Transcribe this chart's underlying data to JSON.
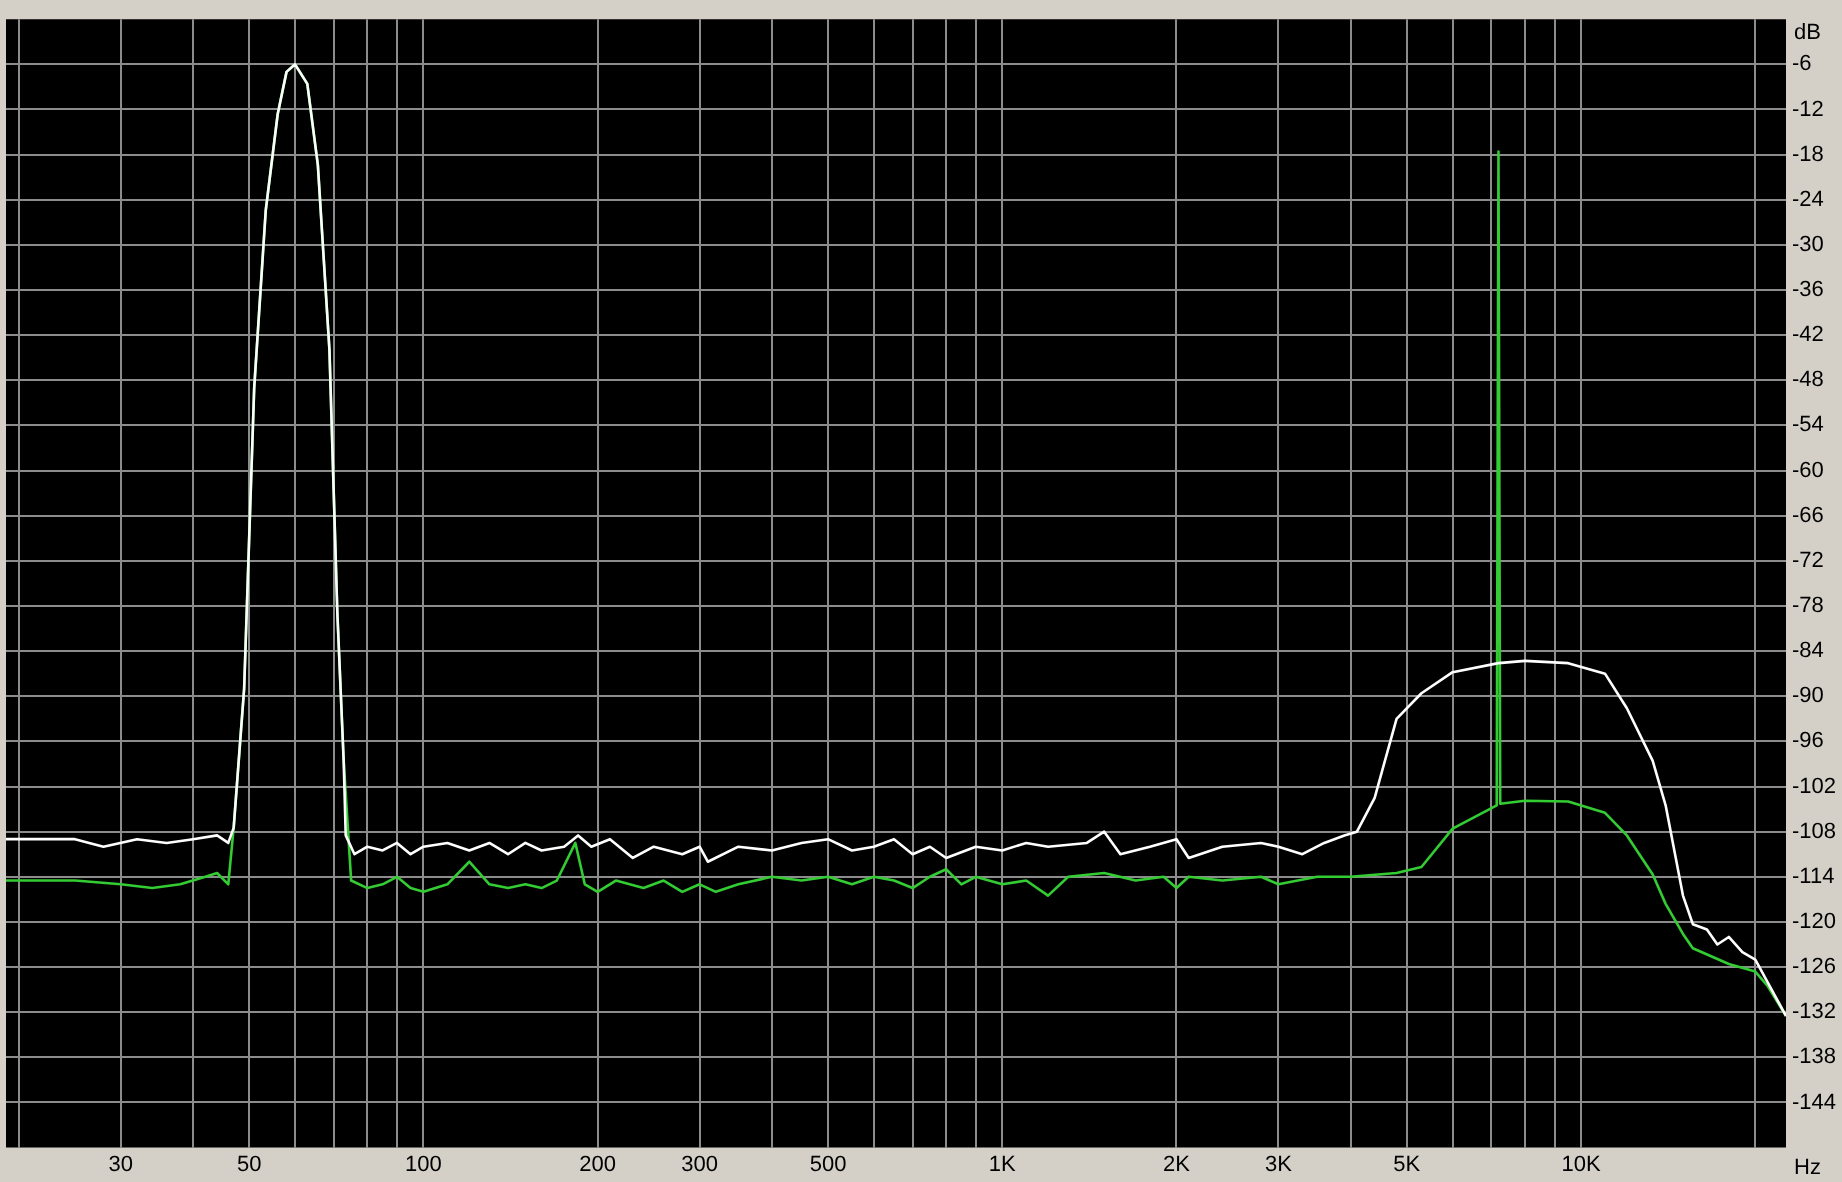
{
  "chart_data": {
    "type": "line",
    "xlabel": "Hz",
    "ylabel": "dB",
    "log": "x",
    "grid": true,
    "legend": false,
    "marker": "none",
    "line_style": "solid",
    "xlim": [
      19,
      22600
    ],
    "ylim": [
      -150,
      0
    ],
    "xticks": [
      {
        "value": 20,
        "label": null
      },
      30,
      {
        "value": 40,
        "label": null
      },
      50,
      {
        "value": 60,
        "label": null
      },
      {
        "value": 70,
        "label": null
      },
      {
        "value": 80,
        "label": null
      },
      {
        "value": 90,
        "label": null
      },
      100,
      200,
      300,
      {
        "value": 400,
        "label": null
      },
      500,
      {
        "value": 600,
        "label": null
      },
      {
        "value": 700,
        "label": null
      },
      {
        "value": 800,
        "label": null
      },
      {
        "value": 900,
        "label": null
      },
      {
        "value": 1000,
        "label": "1K"
      },
      {
        "value": 2000,
        "label": "2K"
      },
      {
        "value": 3000,
        "label": "3K"
      },
      {
        "value": 4000,
        "label": null
      },
      {
        "value": 5000,
        "label": "5K"
      },
      {
        "value": 6000,
        "label": null
      },
      {
        "value": 7000,
        "label": null
      },
      {
        "value": 8000,
        "label": null
      },
      {
        "value": 9000,
        "label": null
      },
      {
        "value": 10000,
        "label": "10K"
      },
      {
        "value": 20000,
        "label": null
      }
    ],
    "yticks": [
      -6,
      -12,
      -18,
      -24,
      -30,
      -36,
      -42,
      -48,
      -54,
      -60,
      -66,
      -72,
      -78,
      -84,
      -90,
      -96,
      -102,
      -108,
      -114,
      -120,
      -126,
      -132,
      -138,
      -144
    ],
    "series": [
      {
        "color": "#ffffff",
        "x": [
          19,
          25,
          28,
          32,
          36,
          40,
          44,
          46,
          47,
          49,
          51,
          53.4,
          56,
          58,
          60,
          63,
          65.7,
          68.8,
          71,
          72.8,
          73.4,
          76,
          80,
          85,
          90,
          95,
          100,
          110,
          120,
          130,
          140,
          150,
          160,
          175,
          185,
          195,
          210,
          230,
          250,
          280,
          300,
          310,
          350,
          400,
          450,
          500,
          550,
          600,
          650,
          700,
          750,
          800,
          900,
          1000,
          1100,
          1200,
          1400,
          1500,
          1600,
          1800,
          2000,
          2100,
          2400,
          2800,
          3000,
          3300,
          3600,
          3900,
          4100,
          4400,
          4800,
          5300,
          6000,
          7200,
          8000,
          9500,
          11000,
          12000,
          13300,
          14000,
          15000,
          15600,
          16500,
          17200,
          18000,
          19000,
          20000,
          21000,
          22600
        ],
        "values": [
          -109,
          -109,
          -110,
          -109,
          -109.5,
          -109,
          -108.5,
          -109.5,
          -107.5,
          -89,
          -49,
          -25.4,
          -12.6,
          -7,
          -6,
          -8.6,
          -19.4,
          -44,
          -79,
          -98.5,
          -108.5,
          -111,
          -110,
          -110.5,
          -109.5,
          -111,
          -110,
          -109.5,
          -110.5,
          -109.5,
          -111,
          -109.5,
          -110.5,
          -110,
          -108.5,
          -110,
          -109,
          -111.5,
          -110,
          -111,
          -110,
          -112,
          -110,
          -110.5,
          -109.5,
          -109,
          -110.5,
          -110,
          -109,
          -111,
          -110,
          -111.5,
          -110,
          -110.5,
          -109.5,
          -110,
          -109.5,
          -108,
          -111,
          -110,
          -109,
          -111.5,
          -110,
          -109.5,
          -110,
          -111,
          -109.5,
          -108.5,
          -108,
          -103.5,
          -93,
          -89.6,
          -86.8,
          -85.6,
          -85.3,
          -85.6,
          -87,
          -91.6,
          -98.6,
          -104.5,
          -116.5,
          -120.3,
          -121,
          -123,
          -122,
          -124,
          -125,
          -128,
          -132.5
        ]
      },
      {
        "color": "#33cc33",
        "x": [
          19,
          25,
          30,
          34,
          38,
          42,
          44,
          46,
          47,
          49,
          51,
          53.4,
          56,
          58,
          60,
          63,
          65.7,
          68.8,
          71,
          72.8,
          75,
          80,
          85,
          90,
          95,
          100,
          110,
          120,
          130,
          140,
          150,
          160,
          170,
          183,
          190,
          200,
          215,
          240,
          260,
          280,
          300,
          320,
          350,
          400,
          450,
          500,
          550,
          600,
          650,
          700,
          750,
          800,
          850,
          900,
          1000,
          1100,
          1200,
          1300,
          1500,
          1700,
          1900,
          2000,
          2100,
          2400,
          2800,
          3000,
          3500,
          4000,
          4800,
          5300,
          6000,
          7150,
          7200,
          7250,
          8000,
          9500,
          11000,
          12000,
          13300,
          14000,
          15000,
          15600,
          18000,
          20000,
          21000,
          22600
        ],
        "values": [
          -114.5,
          -114.5,
          -115,
          -115.5,
          -115,
          -114,
          -113.5,
          -115,
          -107.5,
          -89,
          -49,
          -25.4,
          -12.6,
          -7,
          -6,
          -8.6,
          -19.4,
          -44,
          -79,
          -98.5,
          -114.5,
          -115.5,
          -115,
          -114,
          -115.5,
          -116,
          -115,
          -112,
          -115,
          -115.5,
          -115,
          -115.5,
          -114.5,
          -109.5,
          -115,
          -116,
          -114.5,
          -115.5,
          -114.5,
          -116,
          -115,
          -116,
          -115,
          -114,
          -114.5,
          -114,
          -115,
          -114,
          -114.5,
          -115.5,
          -114,
          -113,
          -115,
          -114,
          -115,
          -114.5,
          -116.5,
          -114,
          -113.5,
          -114.5,
          -114,
          -115.5,
          -114,
          -114.5,
          -114,
          -115,
          -114,
          -114,
          -113.5,
          -112.7,
          -107.6,
          -104.5,
          -17.6,
          -104.3,
          -103.9,
          -104,
          -105.5,
          -108.5,
          -113.7,
          -117.6,
          -121.6,
          -123.5,
          -125.6,
          -126.6,
          -128.5,
          -132.5
        ]
      }
    ]
  }
}
